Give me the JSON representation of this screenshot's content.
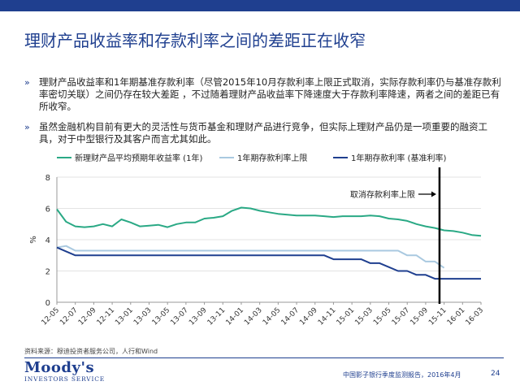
{
  "title": "理财产品收益率和存款利率之间的差距正在收窄",
  "bullets": [
    "理财产品收益率和1年期基准存款利率（尽管2015年10月存款利率上限正式取消，实际存款利率仍与基准存款利率密切关联）之间仍存在较大差距 ，不过随着理财产品收益率下降速度大于存款利率降速，两者之间的差距已有所收窄。",
    "虽然金融机构目前有更大的灵活性与货币基金和理财产品进行竞争，但实际上理财产品仍是一项重要的融资工具，对于中型银行及其客户而言尤其如此。"
  ],
  "bullet_mark": "»",
  "legend": [
    {
      "label": "新理财产品平均预期年收益率 (1年)",
      "color": "#2aa985"
    },
    {
      "label": "1年期存款利率上限",
      "color": "#a9c9e0"
    },
    {
      "label": "1年期存款利率 (基准利率)",
      "color": "#1f3f8f"
    }
  ],
  "chart_data": {
    "type": "line",
    "ylabel": "%",
    "ylim": [
      0,
      8
    ],
    "yticks": [
      0,
      2,
      4,
      6,
      8
    ],
    "xtick_labels": [
      "12-05",
      "12-07",
      "12-09",
      "12-11",
      "13-01",
      "13-03",
      "13-05",
      "13-07",
      "13-09",
      "13-11",
      "14-01",
      "14-03",
      "14-05",
      "14-07",
      "14-09",
      "14-11",
      "15-01",
      "15-03",
      "15-05",
      "15-07",
      "15-09",
      "15-11",
      "16-01",
      "16-03"
    ],
    "annotation": {
      "text": "取消存款利率上限",
      "x_index": 41.5
    },
    "series": [
      {
        "name": "新理财产品平均预期年收益率 (1年)",
        "color": "#2aa985",
        "values": [
          5.95,
          5.15,
          4.85,
          4.8,
          4.85,
          5.0,
          4.85,
          5.3,
          5.1,
          4.85,
          4.9,
          4.95,
          4.8,
          5.0,
          5.1,
          5.1,
          5.35,
          5.4,
          5.5,
          5.85,
          6.05,
          6.0,
          5.85,
          5.75,
          5.65,
          5.6,
          5.55,
          5.55,
          5.55,
          5.5,
          5.45,
          5.5,
          5.5,
          5.5,
          5.55,
          5.5,
          5.35,
          5.3,
          5.2,
          5.0,
          4.85,
          4.75,
          4.6,
          4.55,
          4.45,
          4.3,
          4.25
        ]
      },
      {
        "name": "1年期存款利率上限",
        "color": "#a9c9e0",
        "values": [
          3.5,
          3.6,
          3.3,
          3.3,
          3.3,
          3.3,
          3.3,
          3.3,
          3.3,
          3.3,
          3.3,
          3.3,
          3.3,
          3.3,
          3.3,
          3.3,
          3.3,
          3.3,
          3.3,
          3.3,
          3.3,
          3.3,
          3.3,
          3.3,
          3.3,
          3.3,
          3.3,
          3.3,
          3.3,
          3.3,
          3.3,
          3.3,
          3.3,
          3.3,
          3.3,
          3.3,
          3.3,
          3.3,
          3.0,
          3.0,
          2.6,
          2.6,
          2.2,
          null,
          null,
          null,
          null
        ]
      },
      {
        "name": "1年期存款利率 (基准利率)",
        "color": "#1f3f8f",
        "values": [
          3.5,
          3.25,
          3.0,
          3.0,
          3.0,
          3.0,
          3.0,
          3.0,
          3.0,
          3.0,
          3.0,
          3.0,
          3.0,
          3.0,
          3.0,
          3.0,
          3.0,
          3.0,
          3.0,
          3.0,
          3.0,
          3.0,
          3.0,
          3.0,
          3.0,
          3.0,
          3.0,
          3.0,
          3.0,
          3.0,
          2.75,
          2.75,
          2.75,
          2.75,
          2.5,
          2.5,
          2.25,
          2.0,
          2.0,
          1.75,
          1.75,
          1.5,
          1.5,
          1.5,
          1.5,
          1.5,
          1.5
        ]
      }
    ]
  },
  "source": "资料来源：穆迪投资者服务公司，人行和Wind",
  "logo": {
    "main": "Moody's",
    "sub": "INVESTORS SERVICE"
  },
  "footer": "中国影子银行季度监测报告，2016年4月",
  "page_number": "24"
}
